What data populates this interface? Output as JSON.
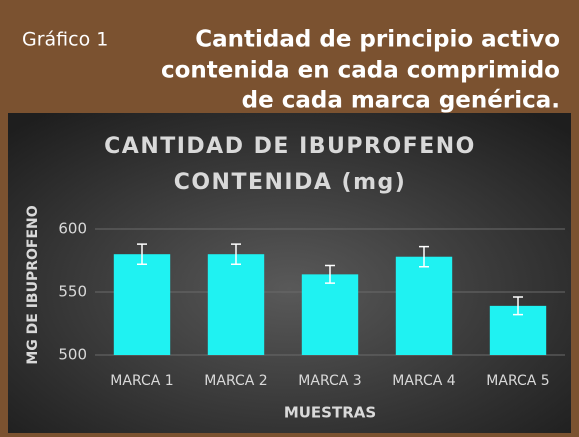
{
  "header": {
    "label": "Gráfico 1",
    "title_lines": [
      "Cantidad de principio activo",
      "contenida en cada comprimido",
      "de cada marca genérica."
    ]
  },
  "chart_data": {
    "type": "bar",
    "title_lines": [
      "CANTIDAD DE IBUPROFENO",
      "CONTENIDA (mg)"
    ],
    "x_label": "MUESTRAS",
    "y_label": "MG DE IBUPROFENO",
    "categories": [
      "MARCA 1",
      "MARCA 2",
      "MARCA 3",
      "MARCA 4",
      "MARCA 5"
    ],
    "values": [
      580,
      580,
      564,
      578,
      539
    ],
    "errors": [
      8,
      8,
      7,
      8,
      7
    ],
    "color": "#1ff2f2",
    "ylim": [
      500,
      620
    ],
    "yticks": [
      500,
      550,
      600
    ],
    "grid": true
  }
}
